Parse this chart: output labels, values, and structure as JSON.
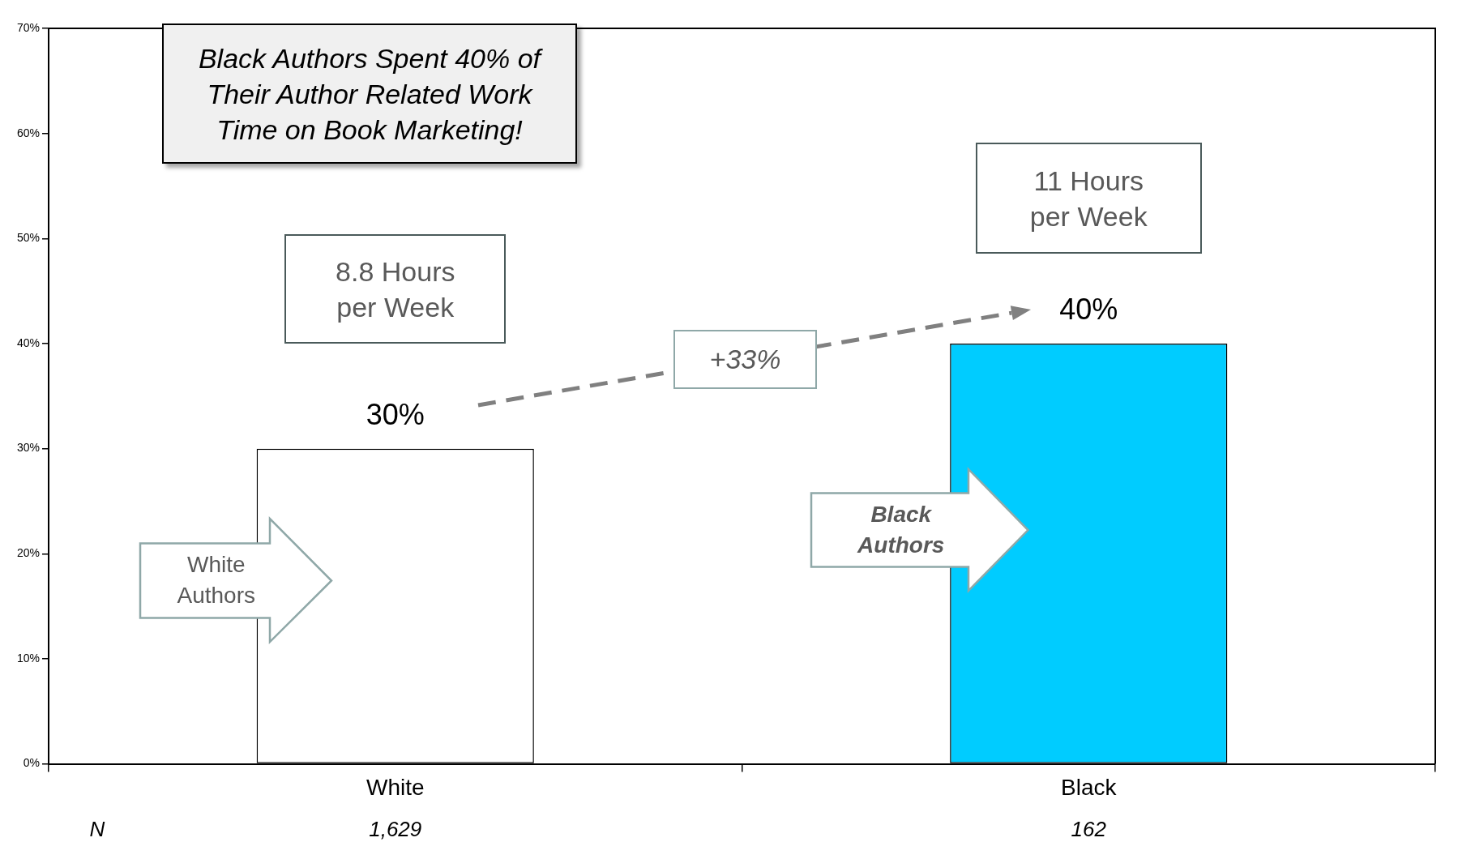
{
  "chart_data": {
    "type": "bar",
    "title": "Black Authors Spent 40% of Their Author Related Work Time on Book Marketing!",
    "categories": [
      "White",
      "Black"
    ],
    "values": [
      30,
      40
    ],
    "colors": [
      "#ffffff",
      "#00ccff"
    ],
    "value_labels": [
      "30%",
      "40%"
    ],
    "ylim": [
      0,
      70
    ],
    "yticks": [
      {
        "value": 0,
        "label": "0%"
      },
      {
        "value": 10,
        "label": "10%"
      },
      {
        "value": 20,
        "label": "20%"
      },
      {
        "value": 30,
        "label": "30%"
      },
      {
        "value": 40,
        "label": "40%"
      },
      {
        "value": 50,
        "label": "50%"
      },
      {
        "value": 60,
        "label": "60%"
      },
      {
        "value": 70,
        "label": "70%"
      }
    ],
    "annotations": [
      "8.8 Hours per Week",
      "11 Hours per Week",
      "+33%",
      "White Authors",
      "Black Authors",
      "N",
      "1,629",
      "162"
    ]
  }
}
